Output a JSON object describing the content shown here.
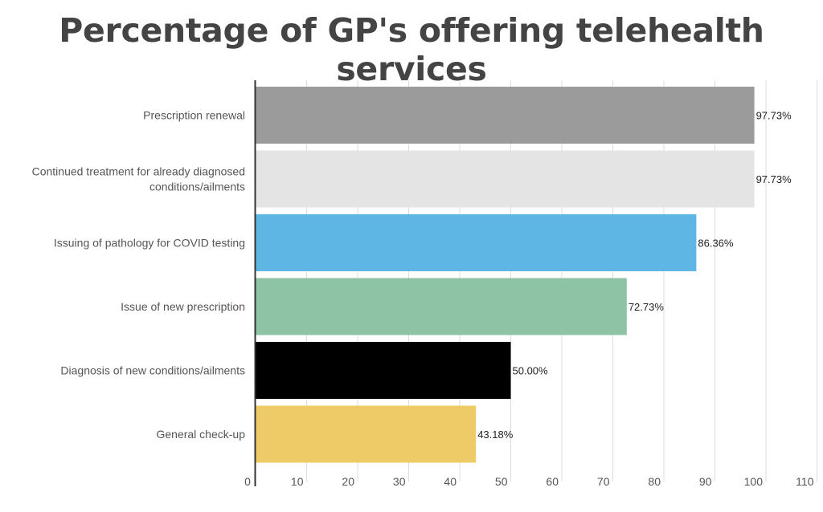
{
  "chart_data": {
    "type": "bar",
    "orientation": "horizontal",
    "title": "Percentage of GP's offering telehealth services",
    "xlabel": "",
    "ylabel": "",
    "xlim": [
      0,
      110
    ],
    "xticks": [
      0,
      10,
      20,
      30,
      40,
      50,
      60,
      70,
      80,
      90,
      100,
      110
    ],
    "grid": true,
    "legend": "none",
    "categories": [
      "Prescription renewal",
      "Continued treatment for already diagnosed conditions/ailments",
      "Issuing of pathology for COVID testing",
      "Issue of new prescription",
      "Diagnosis of new conditions/ailments",
      "General check-up"
    ],
    "category_lines": [
      [
        "Prescription renewal"
      ],
      [
        "Continued treatment for already diagnosed",
        "conditions/ailments"
      ],
      [
        "Issuing of pathology for COVID testing"
      ],
      [
        "Issue of new prescription"
      ],
      [
        "Diagnosis of new conditions/ailments"
      ],
      [
        "General check-up"
      ]
    ],
    "values": [
      97.73,
      97.73,
      86.36,
      72.73,
      50.0,
      43.18
    ],
    "value_labels": [
      "97.73%",
      "97.73%",
      "86.36%",
      "72.73%",
      "50.00%",
      "43.18%"
    ],
    "colors": [
      "#9b9b9b",
      "#e4e4e4",
      "#5eb6e4",
      "#8fc3a5",
      "#000000",
      "#efcb68"
    ]
  }
}
